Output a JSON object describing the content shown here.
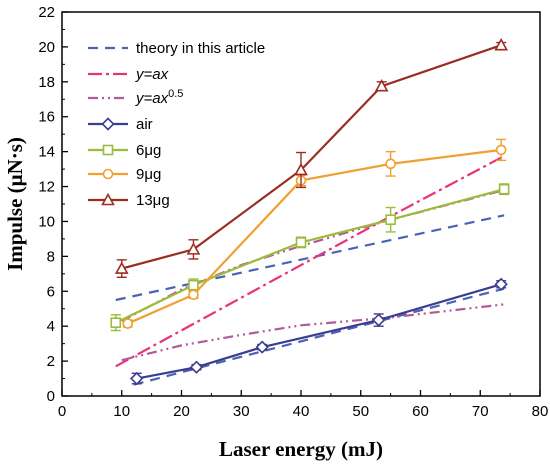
{
  "chart_data": {
    "type": "line",
    "xlabel": "Laser  energy (mJ)",
    "ylabel": "Impulse (μN·s)",
    "xlim": [
      0,
      80
    ],
    "ylim": [
      0,
      22
    ],
    "xticks": [
      "0",
      "10",
      "20",
      "30",
      "40",
      "50",
      "60",
      "70",
      "80"
    ],
    "yticks": [
      "0",
      "2",
      "4",
      "6",
      "8",
      "10",
      "12",
      "14",
      "16",
      "18",
      "20",
      "22"
    ],
    "grid": false,
    "legend_position": "top-left",
    "legend": [
      {
        "key": "theory",
        "label": "theory in this article"
      },
      {
        "key": "linear",
        "label": "y=ax"
      },
      {
        "key": "sqrt",
        "label_prefix": "y=ax",
        "label_sup": "0.5"
      },
      {
        "key": "air",
        "label": "air"
      },
      {
        "key": "ug6",
        "label": "6μg"
      },
      {
        "key": "ug9",
        "label": "9μg"
      },
      {
        "key": "ug13",
        "label": "13μg"
      }
    ],
    "series": [
      {
        "key": "air",
        "name": "air",
        "color": "#3d3d8f",
        "marker": "diamond",
        "x": [
          12.5,
          22.5,
          33.5,
          53,
          73.5
        ],
        "y": [
          1.0,
          1.65,
          2.8,
          4.35,
          6.4
        ],
        "err": [
          0.3,
          0.15,
          0.15,
          0.35,
          0.2
        ]
      },
      {
        "key": "ug6",
        "name": "6μg",
        "color": "#9bbb3b",
        "marker": "square",
        "x": [
          9,
          22,
          40,
          55,
          74
        ],
        "y": [
          4.2,
          6.35,
          8.8,
          10.1,
          11.85
        ],
        "err": [
          0.45,
          0.35,
          0.3,
          0.7,
          0.3
        ]
      },
      {
        "key": "ug9",
        "name": "9μg",
        "color": "#f0a030",
        "marker": "circle",
        "x": [
          11,
          22,
          40,
          55,
          73.5
        ],
        "y": [
          4.15,
          5.8,
          12.35,
          13.3,
          14.1
        ],
        "err": [
          0.2,
          0.2,
          0.3,
          0.7,
          0.6
        ]
      },
      {
        "key": "ug13",
        "name": "13μg",
        "color": "#9b2d20",
        "marker": "triangle",
        "x": [
          10,
          22,
          40,
          53.5,
          73.5
        ],
        "y": [
          7.3,
          8.4,
          12.95,
          17.75,
          20.1
        ],
        "err": [
          0.5,
          0.55,
          1.0,
          0.25,
          0.15
        ]
      }
    ],
    "fits": [
      {
        "key": "theory",
        "name": "theory in this article",
        "color": "#4a63b4",
        "dash": "10,7",
        "segments": [
          {
            "x": [
              9,
              74
            ],
            "y": [
              5.5,
              10.35
            ]
          },
          {
            "x": [
              12,
              74
            ],
            "y": [
              0.65,
              6.15
            ]
          }
        ]
      },
      {
        "key": "linear",
        "name": "y=ax",
        "color": "#e8337a",
        "dash": "14,4,3,4",
        "segments": [
          {
            "x": [
              9,
              40,
              55,
              74
            ],
            "y": [
              1.7,
              7.5,
              10.3,
              13.75
            ]
          }
        ]
      },
      {
        "key": "sqrt",
        "name": "y=ax^0.5",
        "color": "#b05a9a",
        "dash": "10,4,2,4,2,4",
        "segments": [
          {
            "x": [
              10,
              20,
              30,
              40,
              55,
              74
            ],
            "y": [
              4.3,
              6.1,
              7.5,
              8.6,
              10.1,
              11.8
            ]
          },
          {
            "x": [
              10,
              20,
              30,
              40,
              55,
              74
            ],
            "y": [
              2.05,
              2.9,
              3.5,
              4.05,
              4.5,
              5.25
            ]
          }
        ]
      }
    ]
  }
}
